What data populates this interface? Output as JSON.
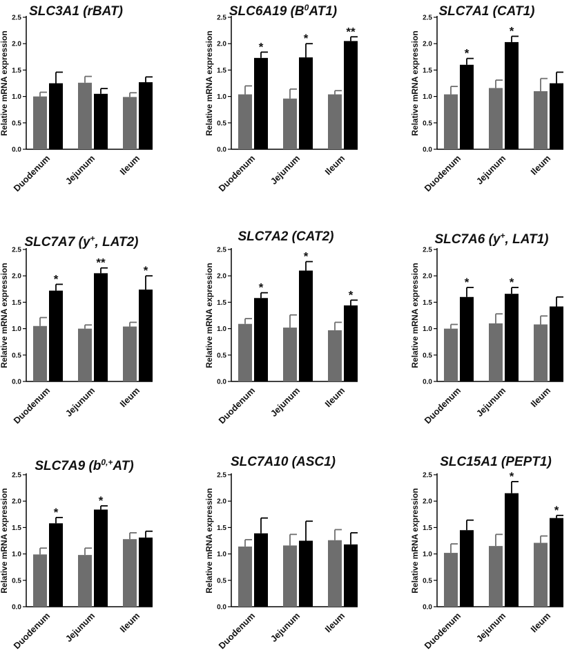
{
  "chart_data": [
    {
      "type": "bar",
      "title": "SLC3A1 (rBAT)",
      "ylabel": "Relative mRNA expression",
      "ylim": [
        0,
        2.5
      ],
      "yticks": [
        "0.0",
        "0.5",
        "1.0",
        "1.5",
        "2.0",
        "2.5"
      ],
      "categories": [
        "Duodenum",
        "Jejunum",
        "Ileum"
      ],
      "series": [
        {
          "color": "#6e6e6e",
          "values": [
            1.0,
            1.26,
            0.99
          ],
          "errors": [
            0.08,
            0.12,
            0.08
          ]
        },
        {
          "color": "#000000",
          "values": [
            1.25,
            1.05,
            1.27
          ],
          "errors": [
            0.21,
            0.1,
            0.1
          ]
        }
      ],
      "annotations": [
        "",
        "",
        ""
      ]
    },
    {
      "type": "bar",
      "title": "SLC6A19 (B0AT1)",
      "ylabel": "Relative mRNA expression",
      "ylim": [
        0,
        2.5
      ],
      "yticks": [
        "0.0",
        "0.5",
        "1.0",
        "1.5",
        "2.0",
        "2.5"
      ],
      "categories": [
        "Duodenum",
        "Jejunum",
        "Ileum"
      ],
      "series": [
        {
          "color": "#6e6e6e",
          "values": [
            1.04,
            0.96,
            1.04
          ],
          "errors": [
            0.16,
            0.18,
            0.07
          ]
        },
        {
          "color": "#000000",
          "values": [
            1.73,
            1.74,
            2.05
          ],
          "errors": [
            0.11,
            0.26,
            0.08
          ]
        }
      ],
      "annotations": [
        "*",
        "*",
        "**"
      ]
    },
    {
      "type": "bar",
      "title": "SLC7A1 (CAT1)",
      "ylabel": "Relative mRNA expression",
      "ylim": [
        0,
        2.5
      ],
      "yticks": [
        "0.0",
        "0.5",
        "1.0",
        "1.5",
        "2.0",
        "2.5"
      ],
      "categories": [
        "Duodenum",
        "Jejunum",
        "Ileum"
      ],
      "series": [
        {
          "color": "#6e6e6e",
          "values": [
            1.04,
            1.16,
            1.1
          ],
          "errors": [
            0.15,
            0.15,
            0.24
          ]
        },
        {
          "color": "#000000",
          "values": [
            1.6,
            2.03,
            1.25
          ],
          "errors": [
            0.12,
            0.11,
            0.21
          ]
        }
      ],
      "annotations": [
        "*",
        "*",
        ""
      ]
    },
    {
      "type": "bar",
      "title": "SLC7A7 (y+, LAT2)",
      "ylabel": "Relative mRNA expression",
      "ylim": [
        0,
        2.5
      ],
      "yticks": [
        "0.0",
        "0.5",
        "1.0",
        "1.5",
        "2.0",
        "2.5"
      ],
      "categories": [
        "Duodenum",
        "Jejunum",
        "Ileum"
      ],
      "series": [
        {
          "color": "#6e6e6e",
          "values": [
            1.05,
            1.0,
            1.04
          ],
          "errors": [
            0.16,
            0.07,
            0.08
          ]
        },
        {
          "color": "#000000",
          "values": [
            1.72,
            2.05,
            1.74
          ],
          "errors": [
            0.12,
            0.1,
            0.26
          ]
        }
      ],
      "annotations": [
        "*",
        "**",
        "*"
      ]
    },
    {
      "type": "bar",
      "title": "SLC7A2 (CAT2)",
      "ylabel": "Relative mRNA expression",
      "ylim": [
        0,
        2.5
      ],
      "yticks": [
        "0.0",
        "0.5",
        "1.0",
        "1.5",
        "2.0",
        "2.5"
      ],
      "categories": [
        "Duodenum",
        "Jejunum",
        "Ileum"
      ],
      "series": [
        {
          "color": "#6e6e6e",
          "values": [
            1.09,
            1.02,
            0.97
          ],
          "errors": [
            0.1,
            0.24,
            0.15
          ]
        },
        {
          "color": "#000000",
          "values": [
            1.58,
            2.1,
            1.44
          ],
          "errors": [
            0.1,
            0.17,
            0.1
          ]
        }
      ],
      "annotations": [
        "*",
        "*",
        "*"
      ]
    },
    {
      "type": "bar",
      "title": "SLC7A6 (y+, LAT1)",
      "ylabel": "Relative mRNA expression",
      "ylim": [
        0,
        2.5
      ],
      "yticks": [
        "0.0",
        "0.5",
        "1.0",
        "1.5",
        "2.0",
        "2.5"
      ],
      "categories": [
        "Duodenum",
        "Jejunum",
        "Ileum"
      ],
      "series": [
        {
          "color": "#6e6e6e",
          "values": [
            1.0,
            1.1,
            1.08
          ],
          "errors": [
            0.08,
            0.18,
            0.16
          ]
        },
        {
          "color": "#000000",
          "values": [
            1.6,
            1.66,
            1.42
          ],
          "errors": [
            0.18,
            0.12,
            0.18
          ]
        }
      ],
      "annotations": [
        "*",
        "*",
        ""
      ]
    },
    {
      "type": "bar",
      "title": "SLC7A9 (b0,+AT)",
      "ylabel": "Relative mRNA expression",
      "ylim": [
        0,
        2.5
      ],
      "yticks": [
        "0.0",
        "0.5",
        "1.0",
        "1.5",
        "2.0",
        "2.5"
      ],
      "categories": [
        "Duodenum",
        "Jejunum",
        "Ileum"
      ],
      "series": [
        {
          "color": "#6e6e6e",
          "values": [
            0.99,
            0.98,
            1.28
          ],
          "errors": [
            0.12,
            0.13,
            0.12
          ]
        },
        {
          "color": "#000000",
          "values": [
            1.58,
            1.84,
            1.31
          ],
          "errors": [
            0.11,
            0.07,
            0.12
          ]
        }
      ],
      "annotations": [
        "*",
        "*",
        ""
      ]
    },
    {
      "type": "bar",
      "title": "SLC7A10 (ASC1)",
      "ylabel": "Relative mRNA expression",
      "ylim": [
        0,
        2.5
      ],
      "yticks": [
        "0.0",
        "0.5",
        "1.0",
        "1.5",
        "2.0",
        "2.5"
      ],
      "categories": [
        "Duodenum",
        "Jejunum",
        "Ileum"
      ],
      "series": [
        {
          "color": "#6e6e6e",
          "values": [
            1.14,
            1.16,
            1.26
          ],
          "errors": [
            0.13,
            0.21,
            0.2
          ]
        },
        {
          "color": "#000000",
          "values": [
            1.39,
            1.25,
            1.18
          ],
          "errors": [
            0.29,
            0.37,
            0.22
          ]
        }
      ],
      "annotations": [
        "",
        "",
        ""
      ]
    },
    {
      "type": "bar",
      "title": "SLC15A1 (PEPT1)",
      "ylabel": "Relative mRNA expression",
      "ylim": [
        0,
        2.5
      ],
      "yticks": [
        "0.0",
        "0.5",
        "1.0",
        "1.5",
        "2.0",
        "2.5"
      ],
      "categories": [
        "Duodenum",
        "Jejunum",
        "Ileum"
      ],
      "series": [
        {
          "color": "#6e6e6e",
          "values": [
            1.02,
            1.15,
            1.21
          ],
          "errors": [
            0.17,
            0.22,
            0.13
          ]
        },
        {
          "color": "#000000",
          "values": [
            1.45,
            2.15,
            1.68
          ],
          "errors": [
            0.19,
            0.22,
            0.05
          ]
        }
      ],
      "annotations": [
        "",
        "*",
        "*"
      ]
    }
  ]
}
